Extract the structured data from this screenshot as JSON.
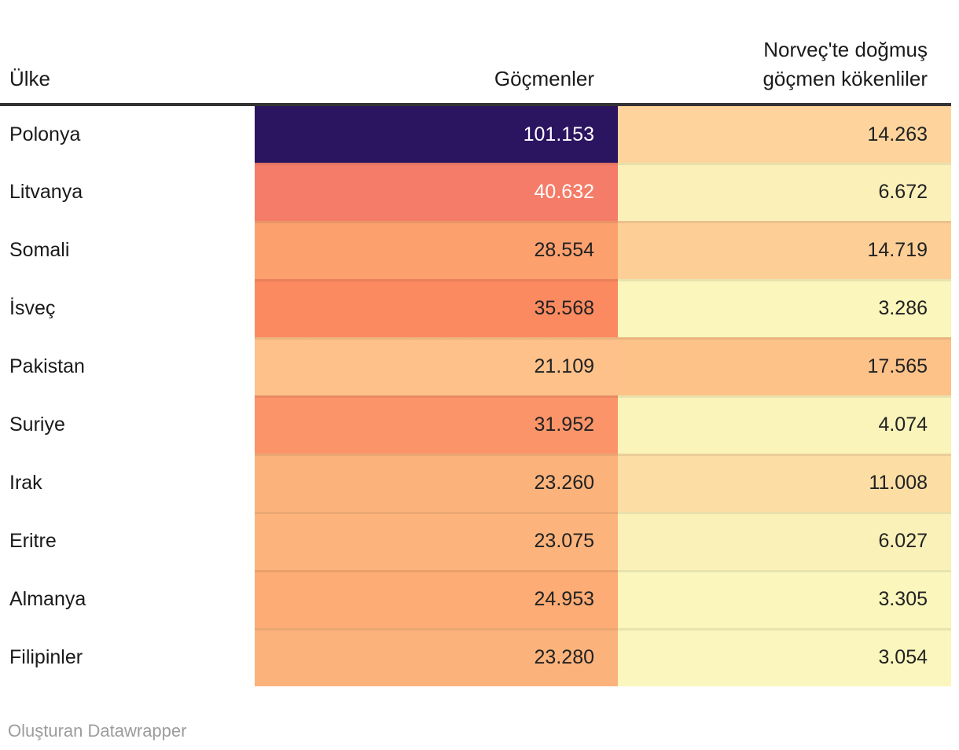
{
  "header": {
    "col1": "Ülke",
    "col2": "Göçmenler",
    "col3_line1": "Norveç'te doğmuş",
    "col3_line2": "göçmen kökenliler"
  },
  "table": {
    "rows": [
      {
        "country": "Polonya",
        "immigrants": "101.153",
        "born": "14.263",
        "immigrants_bg": "#2B1460",
        "immigrants_fg": "#FFFFFF",
        "born_bg": "#FED49C",
        "born_fg": "#222222"
      },
      {
        "country": "Litvanya",
        "immigrants": "40.632",
        "born": "6.672",
        "immigrants_bg": "#F47C68",
        "immigrants_fg": "#FFFFFF",
        "born_bg": "#FAF0B8",
        "born_fg": "#222222"
      },
      {
        "country": "Somali",
        "immigrants": "28.554",
        "born": "14.719",
        "immigrants_bg": "#FCA06E",
        "immigrants_fg": "#222222",
        "born_bg": "#FDCF96",
        "born_fg": "#222222"
      },
      {
        "country": "İsveç",
        "immigrants": "35.568",
        "born": "3.286",
        "immigrants_bg": "#FB8A60",
        "immigrants_fg": "#222222",
        "born_bg": "#FAF6BC",
        "born_fg": "#222222"
      },
      {
        "country": "Pakistan",
        "immigrants": "21.109",
        "born": "17.565",
        "immigrants_bg": "#FDC189",
        "immigrants_fg": "#222222",
        "born_bg": "#FDC288",
        "born_fg": "#222222"
      },
      {
        "country": "Suriye",
        "immigrants": "31.952",
        "born": "4.074",
        "immigrants_bg": "#FB9468",
        "immigrants_fg": "#222222",
        "born_bg": "#FAF4BA",
        "born_fg": "#222222"
      },
      {
        "country": "Irak",
        "immigrants": "23.260",
        "born": "11.008",
        "immigrants_bg": "#FCB37B",
        "immigrants_fg": "#222222",
        "born_bg": "#FCDEA4",
        "born_fg": "#222222"
      },
      {
        "country": "Eritre",
        "immigrants": "23.075",
        "born": "6.027",
        "immigrants_bg": "#FCB47C",
        "immigrants_fg": "#222222",
        "born_bg": "#FAF1B8",
        "born_fg": "#222222"
      },
      {
        "country": "Almanya",
        "immigrants": "24.953",
        "born": "3.305",
        "immigrants_bg": "#FCAC74",
        "immigrants_fg": "#222222",
        "born_bg": "#FAF6BC",
        "born_fg": "#222222"
      },
      {
        "country": "Filipinler",
        "immigrants": "23.280",
        "born": "3.054",
        "immigrants_bg": "#FCB37B",
        "immigrants_fg": "#222222",
        "born_bg": "#FAF6BD",
        "born_fg": "#222222"
      }
    ]
  },
  "footer": {
    "label": "Oluşturan",
    "brand": "Datawrapper"
  },
  "colors": {
    "header_rule": "#333333",
    "heat_high": "#2B1460",
    "heat_mid": "#FB8A60",
    "heat_low": "#FAF6BD",
    "footer_text": "#9c9c9c"
  },
  "chart_data": {
    "type": "heatmap",
    "title": "",
    "columns": [
      "Ülke",
      "Göçmenler",
      "Norveç'te doğmuş göçmen kökenliler"
    ],
    "categories": [
      "Polonya",
      "Litvanya",
      "Somali",
      "İsveç",
      "Pakistan",
      "Suriye",
      "Irak",
      "Eritre",
      "Almanya",
      "Filipinler"
    ],
    "series": [
      {
        "name": "Göçmenler",
        "values": [
          101153,
          40632,
          28554,
          35568,
          21109,
          31952,
          23260,
          23075,
          24953,
          23280
        ]
      },
      {
        "name": "Norveç'te doğmuş göçmen kökenliler",
        "values": [
          14263,
          6672,
          14719,
          3286,
          17565,
          4074,
          11008,
          6027,
          3305,
          3054
        ]
      }
    ],
    "number_format": "thousands separated by dot (tr-TR)",
    "color_scale": {
      "low": "#FAF6BD",
      "mid": "#FB8A60",
      "high": "#2B1460"
    },
    "legend_position": "none",
    "attribution": "Oluşturan Datawrapper"
  }
}
